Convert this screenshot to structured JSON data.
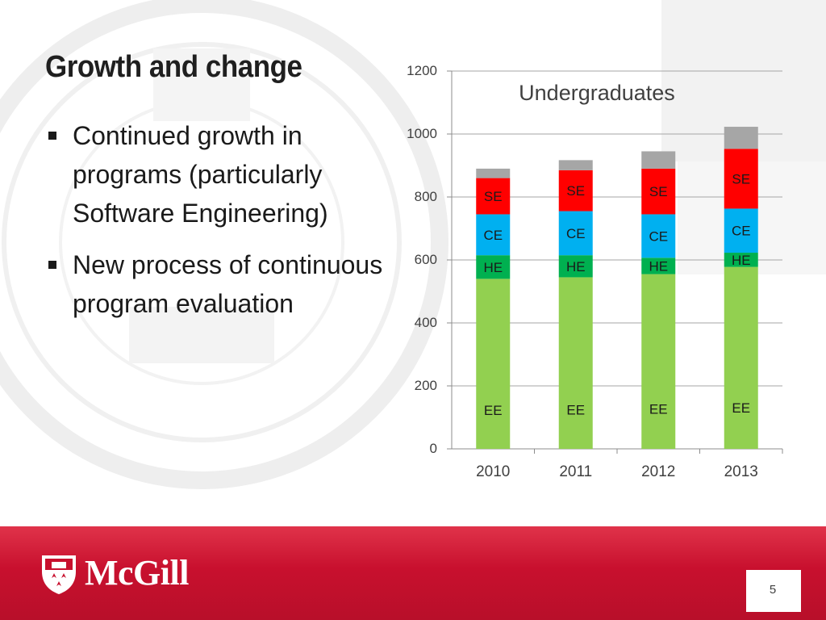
{
  "slide": {
    "title": "Growth and change",
    "bullets": [
      {
        "text": "Continued growth in programs (particularly Software Engineering)"
      },
      {
        "text": "New process of continuous program evaluation"
      }
    ],
    "brand": "McGill",
    "page_number": "5"
  },
  "colors": {
    "EE": "#92d050",
    "HE": "#00b050",
    "CE": "#00b0f0",
    "SE": "#ff0000",
    "other": "#a6a6a6",
    "footer_red": "#c8102e"
  },
  "chart_data": {
    "type": "bar",
    "stacked": true,
    "title": "Undergraduates",
    "categories": [
      "2010",
      "2011",
      "2012",
      "2013"
    ],
    "ylim": [
      0,
      1200
    ],
    "yticks": [
      0,
      200,
      400,
      600,
      800,
      1000,
      1200
    ],
    "grid": true,
    "series": [
      {
        "name": "EE",
        "label": "EE",
        "color_key": "EE",
        "values": [
          540,
          545,
          555,
          578
        ]
      },
      {
        "name": "HE",
        "label": "HE",
        "color_key": "HE",
        "values": [
          75,
          70,
          52,
          45
        ]
      },
      {
        "name": "CE",
        "label": "CE",
        "color_key": "CE",
        "values": [
          130,
          140,
          138,
          140
        ]
      },
      {
        "name": "SE",
        "label": "SE",
        "color_key": "SE",
        "values": [
          115,
          130,
          145,
          190
        ]
      },
      {
        "name": "",
        "label": "",
        "color_key": "other",
        "values": [
          30,
          32,
          55,
          70
        ]
      }
    ]
  }
}
